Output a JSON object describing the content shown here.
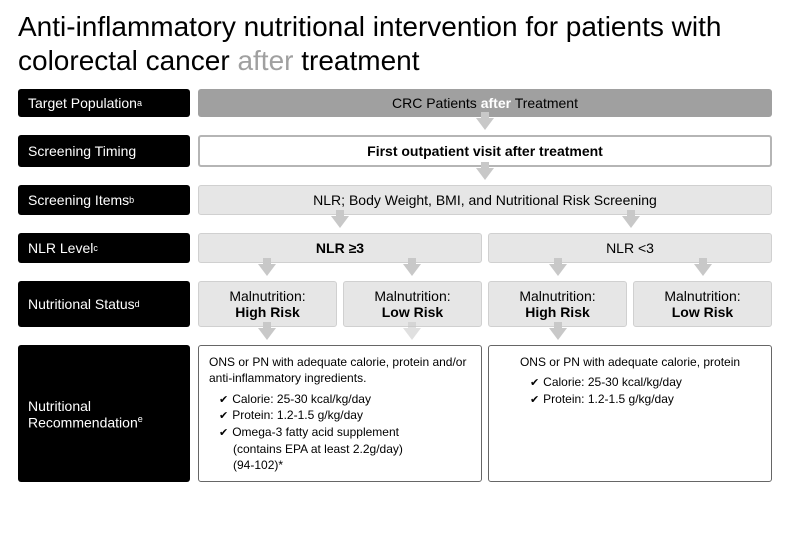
{
  "title_pre": "Anti-inflammatory nutritional intervention for patients with colorectal cancer ",
  "title_grey": "after",
  "title_post": " treatment",
  "labels": {
    "target": "Target Population",
    "target_sup": "a",
    "timing": "Screening Timing",
    "items": "Screening Items",
    "items_sup": "b",
    "nlr": "NLR Level",
    "nlr_sup": "c",
    "status": "Nutritional Status",
    "status_sup": "d",
    "rec": "Nutritional Recommendation",
    "rec_sup": "e"
  },
  "row1_pre": "CRC Patients ",
  "row1_white": "after",
  "row1_post": " Treatment",
  "row2": "First outpatient visit after treatment",
  "row3": "NLR; Body Weight, BMI, and Nutritional Risk Screening",
  "nlr_ge": "NLR ≥3",
  "nlr_lt": "NLR <3",
  "mal_label": "Malnutrition:",
  "high": "High Risk",
  "low": "Low Risk",
  "rec_left_intro": "ONS or PN with adequate calorie, protein and/or anti-inflammatory ingredients.",
  "rec_right_intro": "ONS or PN with adequate calorie, protein",
  "cal": "Calorie: 25-30 kcal/kg/day",
  "prot": "Protein: 1.2-1.5 g/kg/day",
  "omega_a": "Omega-3 fatty acid supplement",
  "omega_b": "(contains EPA at least 2.2g/day)",
  "omega_c": "(94-102)*",
  "colors": {
    "black": "#000000",
    "grey_fill": "#a0a0a0",
    "light_fill": "#e6e6e6",
    "arrow": "#c8c8c8",
    "title_grey": "#a0a0a0"
  }
}
